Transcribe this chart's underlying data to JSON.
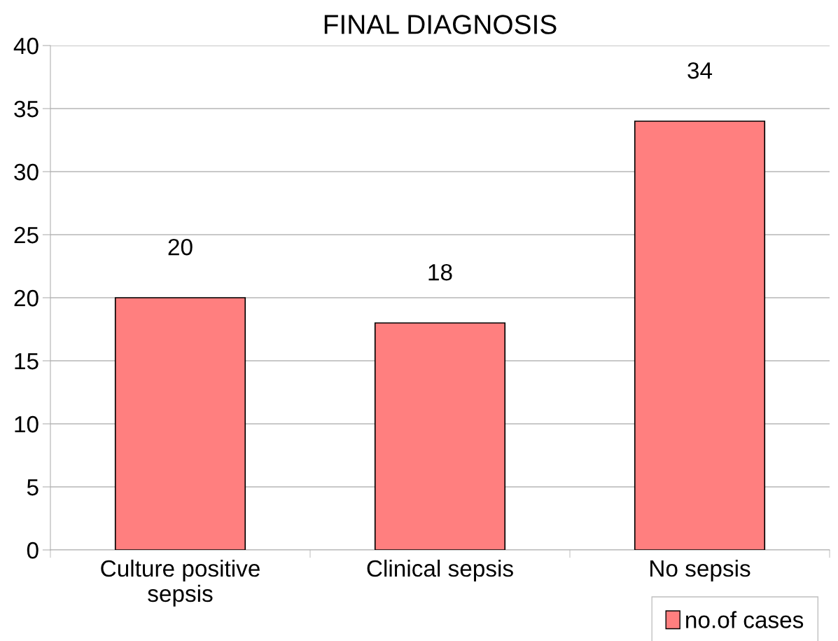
{
  "chart_data": {
    "type": "bar",
    "title": "FINAL DIAGNOSIS",
    "categories": [
      "Culture positive\nsepsis",
      "Clinical sepsis",
      "No sepsis"
    ],
    "series": [
      {
        "name": "no.of cases",
        "color": "#ff7f7f",
        "values": [
          20,
          18,
          34
        ]
      }
    ],
    "ylim": [
      0,
      40
    ],
    "yticks": [
      0,
      5,
      10,
      15,
      20,
      25,
      30,
      35,
      40
    ],
    "grid": "y",
    "legend": "bottom right",
    "data_labels": true
  }
}
